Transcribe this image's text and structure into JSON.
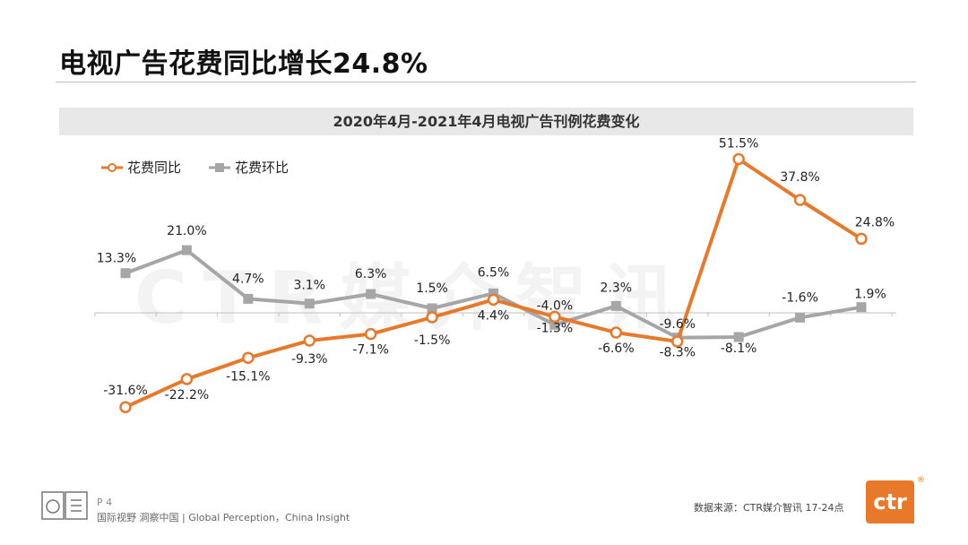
{
  "header": {
    "title": "电视广告花费同比增长24.8%"
  },
  "chart_data": {
    "type": "line",
    "title": "2020年4月-2021年4月电视广告刊例花费变化",
    "categories": [
      "",
      "",
      "",
      "",
      "",
      "",
      "",
      "",
      "",
      "",
      "",
      "",
      ""
    ],
    "series": [
      {
        "name": "花费同比",
        "color": "#e8792b",
        "values": [
          -31.6,
          -22.2,
          -15.1,
          -9.3,
          -7.1,
          -1.5,
          4.4,
          -1.3,
          -6.6,
          -9.6,
          51.5,
          37.8,
          24.8
        ],
        "labels": [
          "-31.6%",
          "-22.2%",
          "-15.1%",
          "-9.3%",
          "-7.1%",
          "-1.5%",
          "4.4%",
          "-1.3%",
          "-6.6%",
          "-9.6%",
          "51.5%",
          "37.8%",
          "24.8%"
        ]
      },
      {
        "name": "花费环比",
        "color": "#a6a6a6",
        "values": [
          13.3,
          21.0,
          4.7,
          3.1,
          6.3,
          1.5,
          6.5,
          -4.0,
          2.3,
          -8.3,
          -8.1,
          -1.6,
          1.9
        ],
        "labels": [
          "13.3%",
          "21.0%",
          "4.7%",
          "3.1%",
          "6.3%",
          "1.5%",
          "6.5%",
          "-4.0%",
          "2.3%",
          "-8.3%",
          "-8.1%",
          "-1.6%",
          "1.9%"
        ]
      }
    ],
    "ylim": [
      -40,
      60
    ],
    "grid": false,
    "legend": "top-left"
  },
  "watermark": "CTR媒介智讯",
  "footer": {
    "page": "P 4",
    "tagline": "国际视野  洞察中国 |  Global Perception，China Insight",
    "source": "数据来源：CTR媒介智讯     17-24点",
    "brand": "ctr",
    "registered": "®"
  }
}
